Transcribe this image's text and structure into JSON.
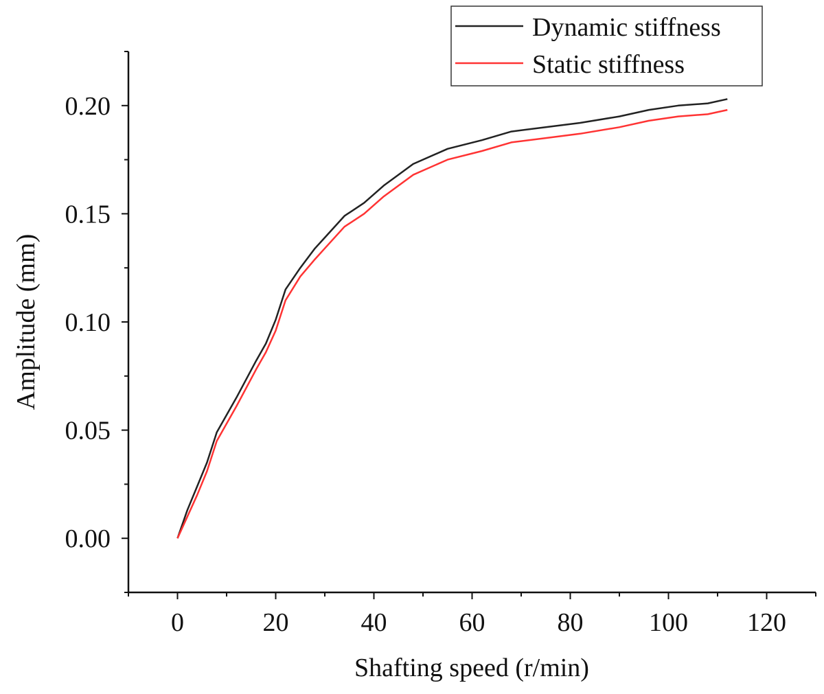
{
  "chart_data": {
    "type": "line",
    "xlabel": "Shafting speed (r/min)",
    "ylabel": "Amplitude (mm)",
    "xlim": [
      -10,
      130
    ],
    "ylim": [
      -0.025,
      0.225
    ],
    "xticks": [
      0,
      20,
      40,
      60,
      80,
      100,
      120
    ],
    "yticks": [
      0.0,
      0.05,
      0.1,
      0.15,
      0.2
    ],
    "xtick_labels": [
      "0",
      "20",
      "40",
      "60",
      "80",
      "100",
      "120"
    ],
    "ytick_labels": [
      "0.00",
      "0.05",
      "0.10",
      "0.15",
      "0.20"
    ],
    "legend_position": "top-right",
    "grid": false,
    "series": [
      {
        "name": "Dynamic stiffness",
        "color": "#222222",
        "x": [
          0,
          2,
          4,
          6,
          8,
          12,
          16,
          18,
          20,
          22,
          25,
          28,
          30,
          34,
          38,
          42,
          48,
          55,
          62,
          68,
          75,
          82,
          90,
          96,
          102,
          108,
          112
        ],
        "y": [
          0.0,
          0.013,
          0.024,
          0.035,
          0.049,
          0.065,
          0.082,
          0.09,
          0.101,
          0.115,
          0.125,
          0.134,
          0.139,
          0.149,
          0.155,
          0.163,
          0.173,
          0.18,
          0.184,
          0.188,
          0.19,
          0.192,
          0.195,
          0.198,
          0.2,
          0.201,
          0.203
        ]
      },
      {
        "name": "Static stiffness",
        "color": "#ff3333",
        "x": [
          0,
          2,
          4,
          6,
          8,
          12,
          16,
          18,
          20,
          22,
          25,
          28,
          30,
          34,
          38,
          42,
          48,
          55,
          62,
          68,
          75,
          82,
          90,
          96,
          102,
          108,
          112
        ],
        "y": [
          0.0,
          0.01,
          0.02,
          0.031,
          0.045,
          0.061,
          0.078,
          0.086,
          0.096,
          0.11,
          0.121,
          0.129,
          0.134,
          0.144,
          0.15,
          0.158,
          0.168,
          0.175,
          0.179,
          0.183,
          0.185,
          0.187,
          0.19,
          0.193,
          0.195,
          0.196,
          0.198
        ]
      }
    ]
  }
}
